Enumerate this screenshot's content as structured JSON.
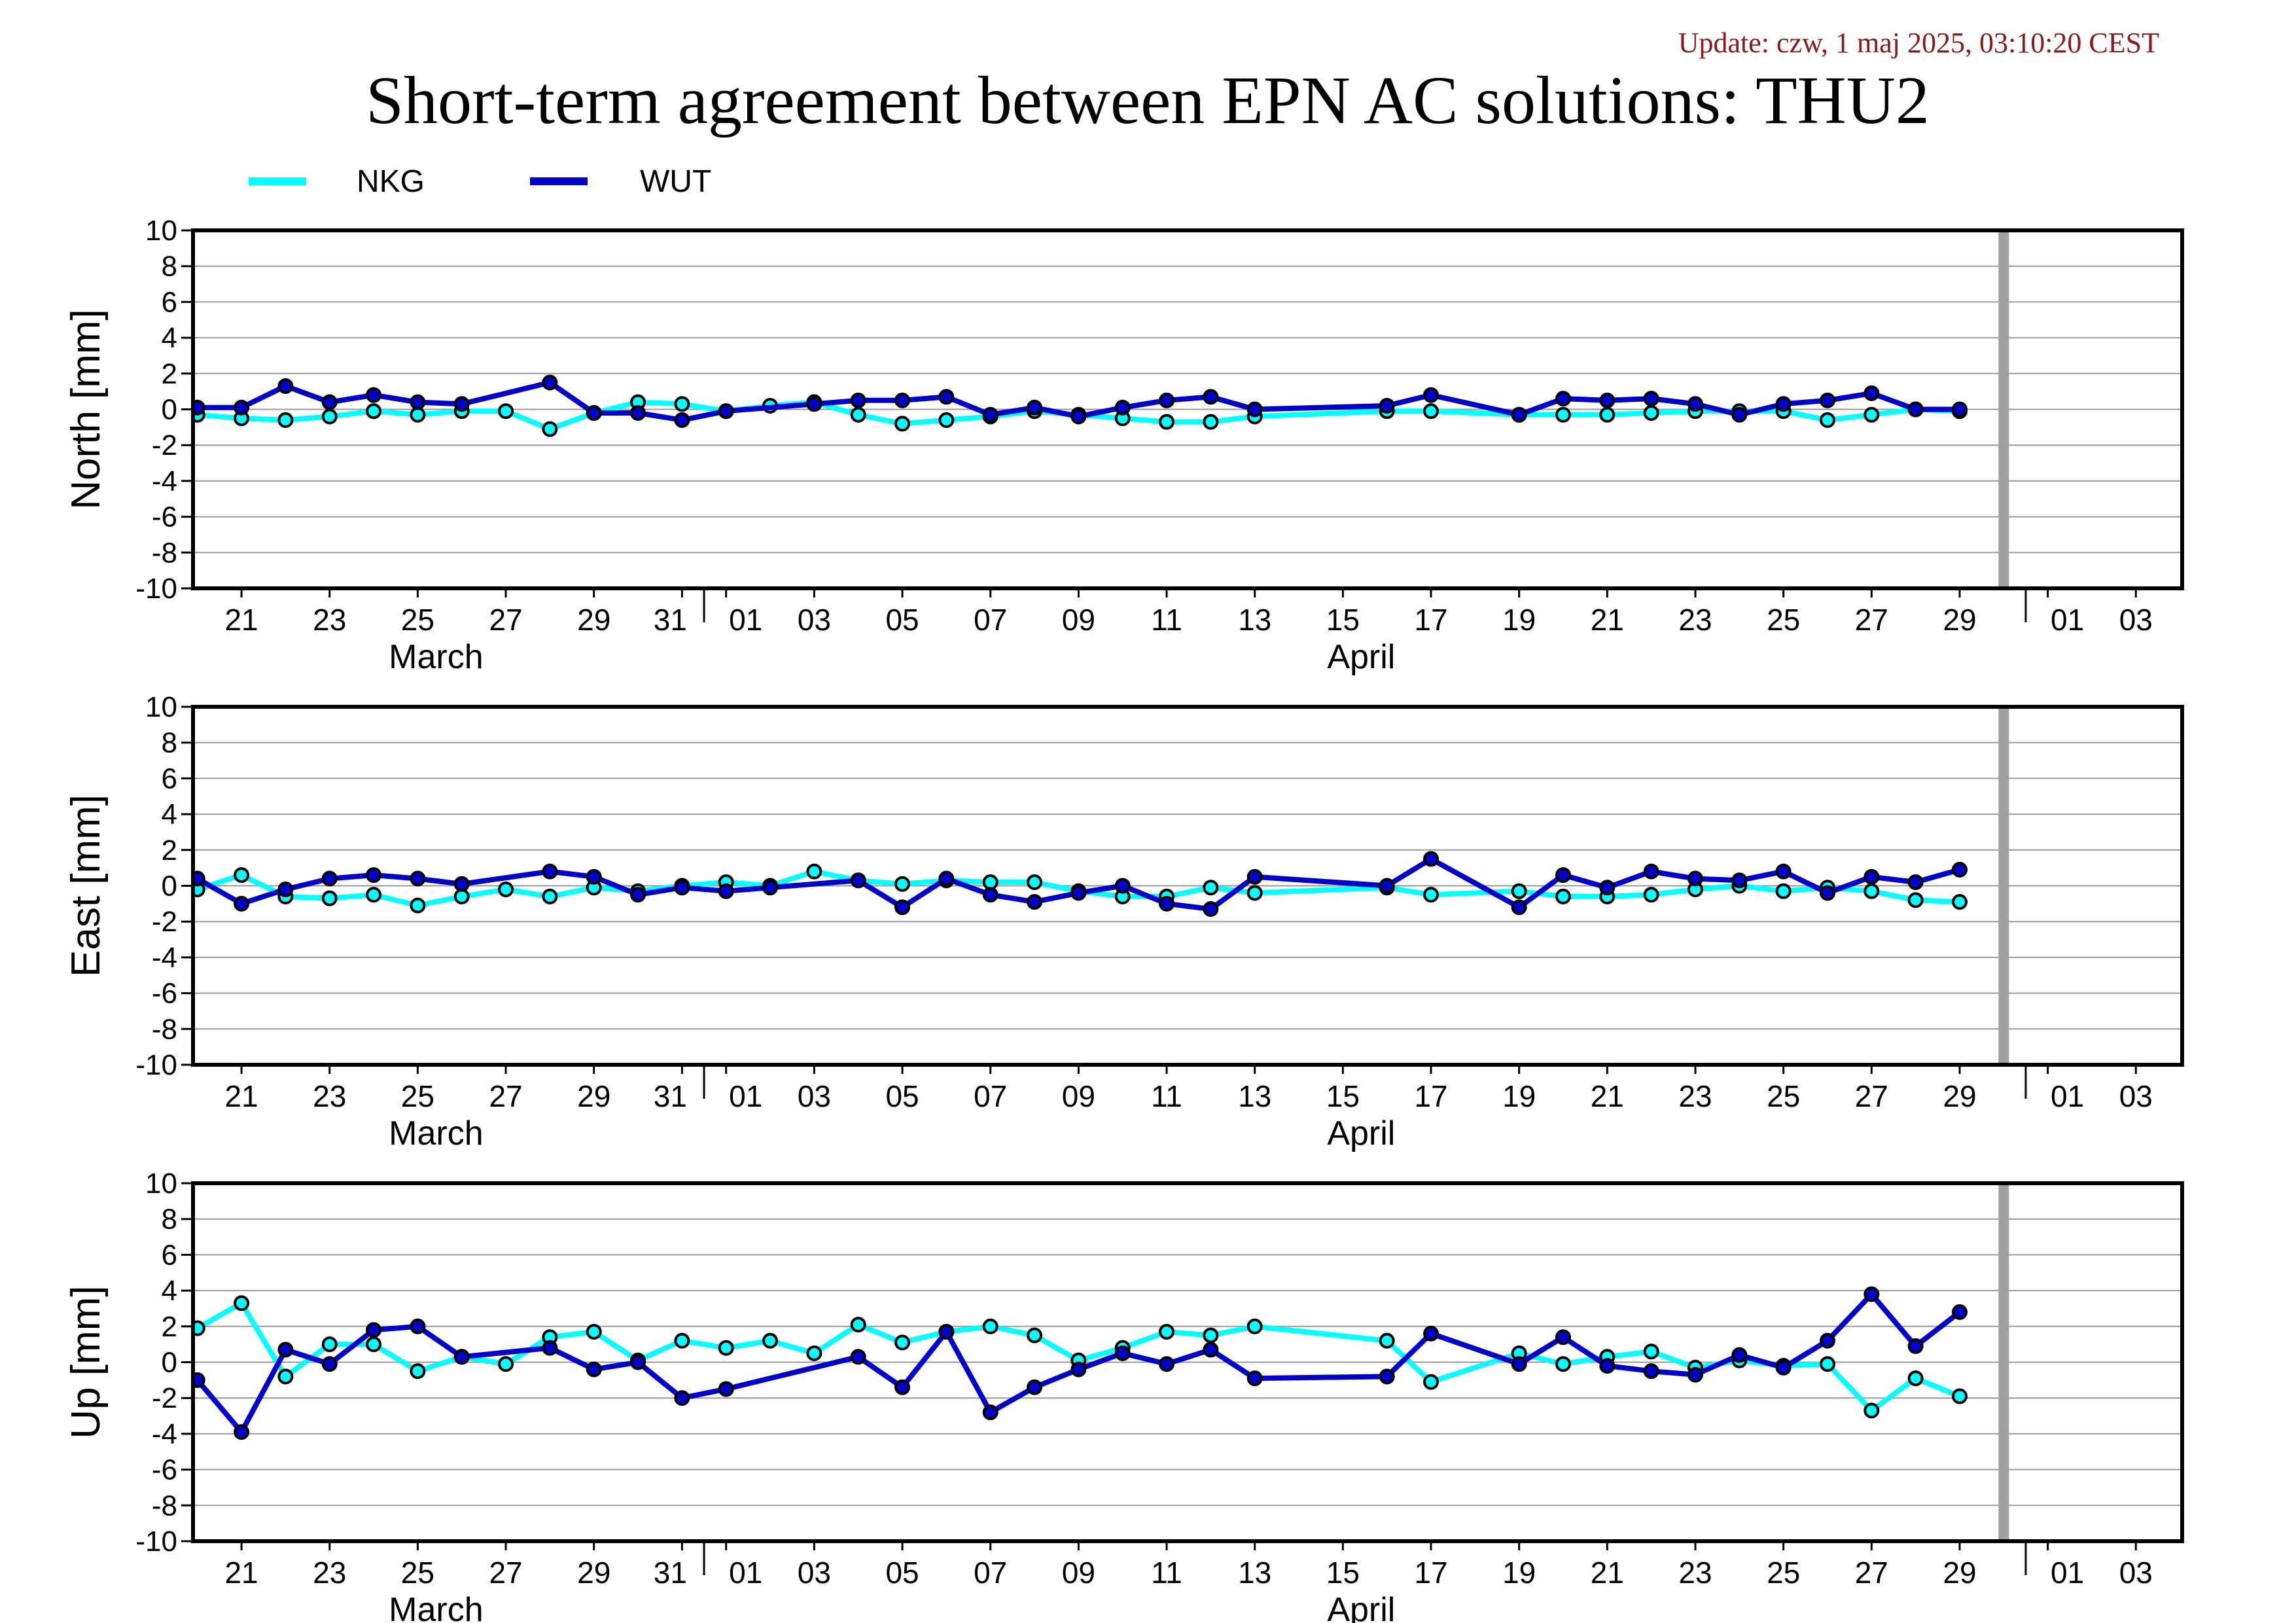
{
  "header": {
    "update": "Update: czw, 1 maj 2025, 03:10:20 CEST",
    "title": "Short-term agreement between EPN AC solutions: THU2"
  },
  "legend": [
    {
      "name": "NKG",
      "color": "#00ffff"
    },
    {
      "name": "WUT",
      "color": "#0000cd"
    }
  ],
  "x_axis": {
    "tick_labels": [
      "21",
      "23",
      "25",
      "27",
      "29",
      "31",
      "01",
      "03",
      "05",
      "07",
      "09",
      "11",
      "13",
      "15",
      "17",
      "19",
      "21",
      "23",
      "25",
      "27",
      "29",
      "01",
      "03"
    ],
    "month_labels": [
      "March",
      "April"
    ]
  },
  "chart_data": [
    {
      "type": "line",
      "ylabel": "North [mm]",
      "ylim": [
        -10,
        10
      ],
      "yticks": [
        -10,
        -8,
        -6,
        -4,
        -2,
        0,
        2,
        4,
        6,
        8,
        10
      ],
      "x_range": [
        "2025-03-20",
        "2025-05-04"
      ],
      "marker_line": "2025-04-30",
      "grid": true,
      "series": [
        {
          "name": "NKG",
          "color": "#00ffff",
          "points": [
            [
              "2025-03-20",
              -0.3
            ],
            [
              "2025-03-21",
              -0.5
            ],
            [
              "2025-03-22",
              -0.6
            ],
            [
              "2025-03-23",
              -0.4
            ],
            [
              "2025-03-24",
              -0.1
            ],
            [
              "2025-03-25",
              -0.3
            ],
            [
              "2025-03-26",
              -0.1
            ],
            [
              "2025-03-27",
              -0.1
            ],
            [
              "2025-03-28",
              -1.1
            ],
            [
              "2025-03-29",
              -0.2
            ],
            [
              "2025-03-30",
              0.4
            ],
            [
              "2025-03-31",
              0.3
            ],
            [
              "2025-04-01",
              -0.1
            ],
            [
              "2025-04-02",
              0.2
            ],
            [
              "2025-04-03",
              0.4
            ],
            [
              "2025-04-04",
              -0.3
            ],
            [
              "2025-04-05",
              -0.8
            ],
            [
              "2025-04-06",
              -0.6
            ],
            [
              "2025-04-07",
              -0.4
            ],
            [
              "2025-04-08",
              -0.1
            ],
            [
              "2025-04-09",
              -0.3
            ],
            [
              "2025-04-10",
              -0.5
            ],
            [
              "2025-04-11",
              -0.7
            ],
            [
              "2025-04-12",
              -0.7
            ],
            [
              "2025-04-13",
              -0.4
            ],
            [
              "2025-04-16",
              -0.1
            ],
            [
              "2025-04-17",
              -0.1
            ],
            [
              "2025-04-19",
              -0.3
            ],
            [
              "2025-04-20",
              -0.3
            ],
            [
              "2025-04-21",
              -0.3
            ],
            [
              "2025-04-22",
              -0.2
            ],
            [
              "2025-04-23",
              -0.1
            ],
            [
              "2025-04-24",
              -0.1
            ],
            [
              "2025-04-25",
              -0.1
            ],
            [
              "2025-04-26",
              -0.6
            ],
            [
              "2025-04-27",
              -0.3
            ],
            [
              "2025-04-28",
              0.0
            ],
            [
              "2025-04-29",
              -0.1
            ]
          ]
        },
        {
          "name": "WUT",
          "color": "#0000cd",
          "points": [
            [
              "2025-03-20",
              0.1
            ],
            [
              "2025-03-21",
              0.1
            ],
            [
              "2025-03-22",
              1.3
            ],
            [
              "2025-03-23",
              0.4
            ],
            [
              "2025-03-24",
              0.8
            ],
            [
              "2025-03-25",
              0.4
            ],
            [
              "2025-03-26",
              0.3
            ],
            [
              "2025-03-28",
              1.5
            ],
            [
              "2025-03-29",
              -0.2
            ],
            [
              "2025-03-30",
              -0.2
            ],
            [
              "2025-03-31",
              -0.6
            ],
            [
              "2025-04-01",
              -0.1
            ],
            [
              "2025-04-03",
              0.3
            ],
            [
              "2025-04-04",
              0.5
            ],
            [
              "2025-04-05",
              0.5
            ],
            [
              "2025-04-06",
              0.7
            ],
            [
              "2025-04-07",
              -0.3
            ],
            [
              "2025-04-08",
              0.1
            ],
            [
              "2025-04-09",
              -0.4
            ],
            [
              "2025-04-10",
              0.1
            ],
            [
              "2025-04-11",
              0.5
            ],
            [
              "2025-04-12",
              0.7
            ],
            [
              "2025-04-13",
              0.0
            ],
            [
              "2025-04-16",
              0.2
            ],
            [
              "2025-04-17",
              0.8
            ],
            [
              "2025-04-19",
              -0.3
            ],
            [
              "2025-04-20",
              0.6
            ],
            [
              "2025-04-21",
              0.5
            ],
            [
              "2025-04-22",
              0.6
            ],
            [
              "2025-04-23",
              0.3
            ],
            [
              "2025-04-24",
              -0.3
            ],
            [
              "2025-04-25",
              0.3
            ],
            [
              "2025-04-26",
              0.5
            ],
            [
              "2025-04-27",
              0.9
            ],
            [
              "2025-04-28",
              0.0
            ],
            [
              "2025-04-29",
              0.0
            ]
          ]
        }
      ]
    },
    {
      "type": "line",
      "ylabel": "East [mm]",
      "ylim": [
        -10,
        10
      ],
      "yticks": [
        -10,
        -8,
        -6,
        -4,
        -2,
        0,
        2,
        4,
        6,
        8,
        10
      ],
      "x_range": [
        "2025-03-20",
        "2025-05-04"
      ],
      "marker_line": "2025-04-30",
      "grid": true,
      "series": [
        {
          "name": "NKG",
          "color": "#00ffff",
          "points": [
            [
              "2025-03-20",
              -0.2
            ],
            [
              "2025-03-21",
              0.6
            ],
            [
              "2025-03-22",
              -0.6
            ],
            [
              "2025-03-23",
              -0.7
            ],
            [
              "2025-03-24",
              -0.5
            ],
            [
              "2025-03-25",
              -1.1
            ],
            [
              "2025-03-26",
              -0.6
            ],
            [
              "2025-03-27",
              -0.2
            ],
            [
              "2025-03-28",
              -0.6
            ],
            [
              "2025-03-29",
              -0.1
            ],
            [
              "2025-03-30",
              -0.3
            ],
            [
              "2025-03-31",
              0.0
            ],
            [
              "2025-04-01",
              0.2
            ],
            [
              "2025-04-02",
              0.0
            ],
            [
              "2025-04-03",
              0.8
            ],
            [
              "2025-04-04",
              0.3
            ],
            [
              "2025-04-05",
              0.1
            ],
            [
              "2025-04-06",
              0.3
            ],
            [
              "2025-04-07",
              0.2
            ],
            [
              "2025-04-08",
              0.2
            ],
            [
              "2025-04-09",
              -0.3
            ],
            [
              "2025-04-10",
              -0.6
            ],
            [
              "2025-04-11",
              -0.6
            ],
            [
              "2025-04-12",
              -0.1
            ],
            [
              "2025-04-13",
              -0.4
            ],
            [
              "2025-04-16",
              -0.1
            ],
            [
              "2025-04-17",
              -0.5
            ],
            [
              "2025-04-19",
              -0.3
            ],
            [
              "2025-04-20",
              -0.6
            ],
            [
              "2025-04-21",
              -0.6
            ],
            [
              "2025-04-22",
              -0.5
            ],
            [
              "2025-04-23",
              -0.2
            ],
            [
              "2025-04-24",
              0.0
            ],
            [
              "2025-04-25",
              -0.3
            ],
            [
              "2025-04-26",
              -0.1
            ],
            [
              "2025-04-27",
              -0.3
            ],
            [
              "2025-04-28",
              -0.8
            ],
            [
              "2025-04-29",
              -0.9
            ]
          ]
        },
        {
          "name": "WUT",
          "color": "#0000cd",
          "points": [
            [
              "2025-03-20",
              0.4
            ],
            [
              "2025-03-21",
              -1.0
            ],
            [
              "2025-03-22",
              -0.2
            ],
            [
              "2025-03-23",
              0.4
            ],
            [
              "2025-03-24",
              0.6
            ],
            [
              "2025-03-25",
              0.4
            ],
            [
              "2025-03-26",
              0.1
            ],
            [
              "2025-03-28",
              0.8
            ],
            [
              "2025-03-29",
              0.5
            ],
            [
              "2025-03-30",
              -0.5
            ],
            [
              "2025-03-31",
              -0.1
            ],
            [
              "2025-04-01",
              -0.3
            ],
            [
              "2025-04-02",
              -0.1
            ],
            [
              "2025-04-04",
              0.3
            ],
            [
              "2025-04-05",
              -1.2
            ],
            [
              "2025-04-06",
              0.4
            ],
            [
              "2025-04-07",
              -0.5
            ],
            [
              "2025-04-08",
              -0.9
            ],
            [
              "2025-04-09",
              -0.4
            ],
            [
              "2025-04-10",
              0.0
            ],
            [
              "2025-04-11",
              -1.0
            ],
            [
              "2025-04-12",
              -1.3
            ],
            [
              "2025-04-13",
              0.5
            ],
            [
              "2025-04-16",
              0.0
            ],
            [
              "2025-04-17",
              1.5
            ],
            [
              "2025-04-19",
              -1.2
            ],
            [
              "2025-04-20",
              0.6
            ],
            [
              "2025-04-21",
              -0.1
            ],
            [
              "2025-04-22",
              0.8
            ],
            [
              "2025-04-23",
              0.4
            ],
            [
              "2025-04-24",
              0.3
            ],
            [
              "2025-04-25",
              0.8
            ],
            [
              "2025-04-26",
              -0.4
            ],
            [
              "2025-04-27",
              0.5
            ],
            [
              "2025-04-28",
              0.2
            ],
            [
              "2025-04-29",
              0.9
            ]
          ]
        }
      ]
    },
    {
      "type": "line",
      "ylabel": "Up [mm]",
      "ylim": [
        -10,
        10
      ],
      "yticks": [
        -10,
        -8,
        -6,
        -4,
        -2,
        0,
        2,
        4,
        6,
        8,
        10
      ],
      "x_range": [
        "2025-03-20",
        "2025-05-04"
      ],
      "marker_line": "2025-04-30",
      "grid": true,
      "series": [
        {
          "name": "NKG",
          "color": "#00ffff",
          "points": [
            [
              "2025-03-20",
              1.9
            ],
            [
              "2025-03-21",
              3.3
            ],
            [
              "2025-03-22",
              -0.8
            ],
            [
              "2025-03-23",
              1.0
            ],
            [
              "2025-03-24",
              1.0
            ],
            [
              "2025-03-25",
              -0.5
            ],
            [
              "2025-03-26",
              0.3
            ],
            [
              "2025-03-27",
              -0.1
            ],
            [
              "2025-03-28",
              1.4
            ],
            [
              "2025-03-29",
              1.7
            ],
            [
              "2025-03-30",
              0.1
            ],
            [
              "2025-03-31",
              1.2
            ],
            [
              "2025-04-01",
              0.8
            ],
            [
              "2025-04-02",
              1.2
            ],
            [
              "2025-04-03",
              0.5
            ],
            [
              "2025-04-04",
              2.1
            ],
            [
              "2025-04-05",
              1.1
            ],
            [
              "2025-04-06",
              1.7
            ],
            [
              "2025-04-07",
              2.0
            ],
            [
              "2025-04-08",
              1.5
            ],
            [
              "2025-04-09",
              0.1
            ],
            [
              "2025-04-10",
              0.8
            ],
            [
              "2025-04-11",
              1.7
            ],
            [
              "2025-04-12",
              1.5
            ],
            [
              "2025-04-13",
              2.0
            ],
            [
              "2025-04-16",
              1.2
            ],
            [
              "2025-04-17",
              -1.1
            ],
            [
              "2025-04-19",
              0.5
            ],
            [
              "2025-04-20",
              -0.1
            ],
            [
              "2025-04-21",
              0.3
            ],
            [
              "2025-04-22",
              0.6
            ],
            [
              "2025-04-23",
              -0.3
            ],
            [
              "2025-04-24",
              0.1
            ],
            [
              "2025-04-25",
              -0.2
            ],
            [
              "2025-04-26",
              -0.1
            ],
            [
              "2025-04-27",
              -2.7
            ],
            [
              "2025-04-28",
              -0.9
            ],
            [
              "2025-04-29",
              -1.9
            ]
          ]
        },
        {
          "name": "WUT",
          "color": "#0000cd",
          "points": [
            [
              "2025-03-20",
              -1.0
            ],
            [
              "2025-03-21",
              -3.9
            ],
            [
              "2025-03-22",
              0.7
            ],
            [
              "2025-03-23",
              -0.1
            ],
            [
              "2025-03-24",
              1.8
            ],
            [
              "2025-03-25",
              2.0
            ],
            [
              "2025-03-26",
              0.3
            ],
            [
              "2025-03-28",
              0.8
            ],
            [
              "2025-03-29",
              -0.4
            ],
            [
              "2025-03-30",
              0.0
            ],
            [
              "2025-03-31",
              -2.0
            ],
            [
              "2025-04-01",
              -1.5
            ],
            [
              "2025-04-04",
              0.3
            ],
            [
              "2025-04-05",
              -1.4
            ],
            [
              "2025-04-06",
              1.7
            ],
            [
              "2025-04-07",
              -2.8
            ],
            [
              "2025-04-08",
              -1.4
            ],
            [
              "2025-04-09",
              -0.4
            ],
            [
              "2025-04-10",
              0.5
            ],
            [
              "2025-04-11",
              -0.1
            ],
            [
              "2025-04-12",
              0.7
            ],
            [
              "2025-04-13",
              -0.9
            ],
            [
              "2025-04-16",
              -0.8
            ],
            [
              "2025-04-17",
              1.6
            ],
            [
              "2025-04-19",
              -0.1
            ],
            [
              "2025-04-20",
              1.4
            ],
            [
              "2025-04-21",
              -0.2
            ],
            [
              "2025-04-22",
              -0.5
            ],
            [
              "2025-04-23",
              -0.7
            ],
            [
              "2025-04-24",
              0.4
            ],
            [
              "2025-04-25",
              -0.3
            ],
            [
              "2025-04-26",
              1.2
            ],
            [
              "2025-04-27",
              3.8
            ],
            [
              "2025-04-28",
              0.9
            ],
            [
              "2025-04-29",
              2.8
            ]
          ]
        }
      ]
    }
  ]
}
